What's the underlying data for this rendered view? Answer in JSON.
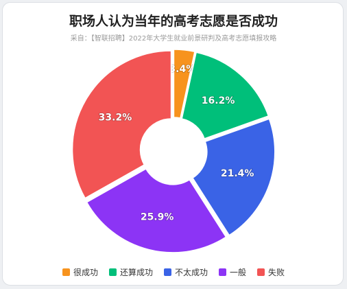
{
  "title": "职场人认为当年的高考志愿是否成功",
  "subtitle": "采自：【智联招聘】2022年大学生就业前景研判及高考志愿填报攻略",
  "chart_data": {
    "type": "pie",
    "style": "donut",
    "categories": [
      "很成功",
      "还算成功",
      "不太成功",
      "一般",
      "失败"
    ],
    "values": [
      3.4,
      16.2,
      21.4,
      25.9,
      33.2
    ],
    "labels": [
      "3.4%",
      "16.2%",
      "21.4%",
      "25.9%",
      "33.2%"
    ],
    "unit": "%",
    "colors": [
      "#F7931E",
      "#00BF7A",
      "#3A63E6",
      "#8C34F5",
      "#F25454"
    ],
    "legend_position": "bottom"
  }
}
